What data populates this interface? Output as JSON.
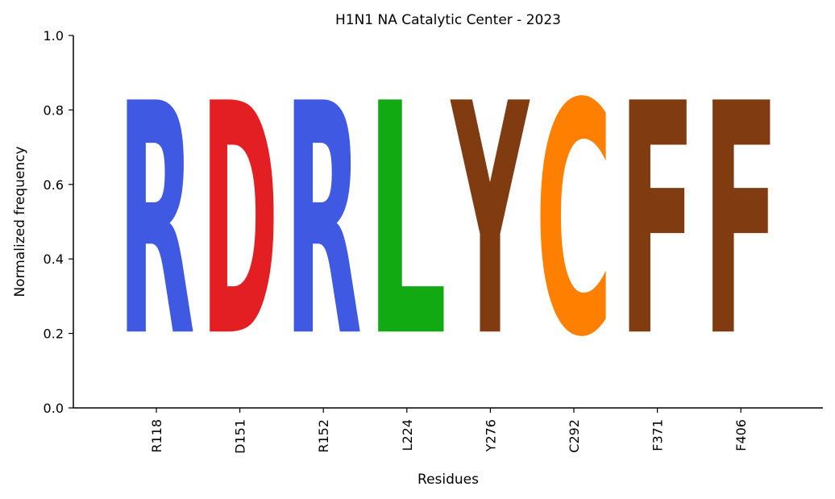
{
  "chart_data": {
    "type": "sequence-logo",
    "title": "H1N1 NA Catalytic Center - 2023",
    "xlabel": "Residues",
    "ylabel": "Normalized frequency",
    "ylim": [
      0,
      1
    ],
    "yticks": [
      "0.0",
      "0.2",
      "0.4",
      "0.6",
      "0.8",
      "1.0"
    ],
    "categories": [
      "R118",
      "D151",
      "R152",
      "L224",
      "Y276",
      "C292",
      "F371",
      "F406"
    ],
    "letters": [
      "R",
      "D",
      "R",
      "L",
      "Y",
      "C",
      "F",
      "F"
    ],
    "values": [
      1.0,
      1.0,
      1.0,
      1.0,
      1.0,
      1.0,
      1.0,
      1.0
    ],
    "colors": {
      "R": "#4059e3",
      "D": "#e31f23",
      "L": "#12aa12",
      "Y": "#813b10",
      "C": "#ff7f00",
      "F": "#813b10"
    },
    "grid": false,
    "legend": "none"
  }
}
